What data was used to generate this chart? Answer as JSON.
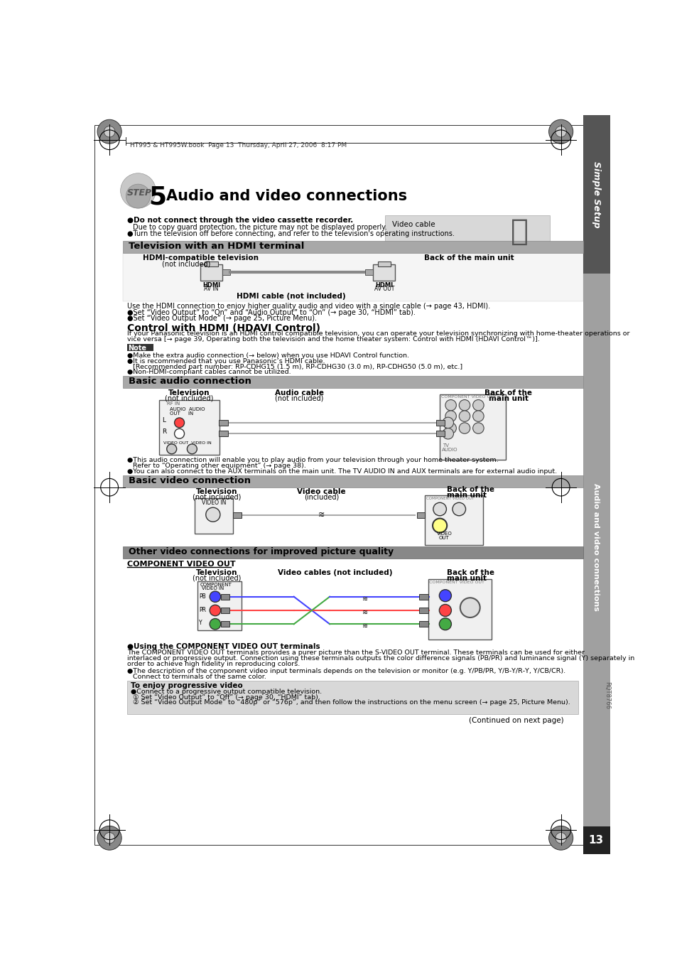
{
  "page_bg": "#ffffff",
  "sidebar_bg_top": "#555555",
  "sidebar_bg_mid": "#a0a0a0",
  "section_header_bg": "#a0a0a0",
  "section_header_dark_bg": "#888888",
  "note_bg": "#c8c8c8",
  "title": "Audio and video connections",
  "step_num": "5",
  "header_meta": "HT995 & HT995W.book  Page 13  Thursday, April 27, 2006  8:17 PM",
  "sidebar_label1": "Simple Setup",
  "sidebar_label2": "Audio and video connections",
  "page_num": "13"
}
